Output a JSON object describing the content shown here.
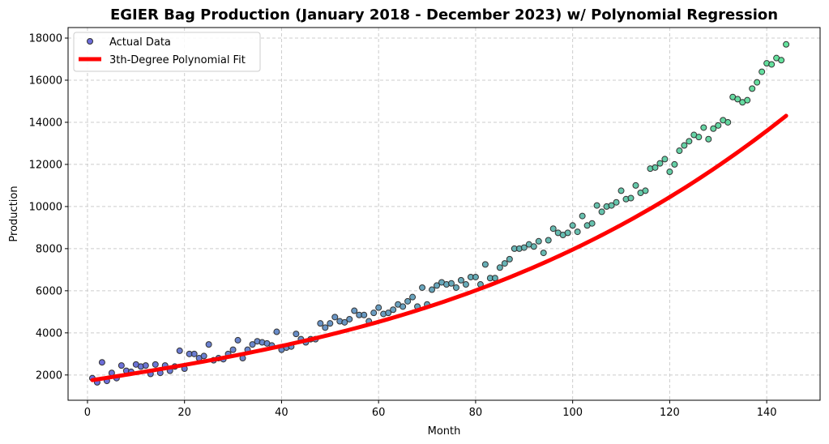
{
  "chart_data": {
    "type": "scatter",
    "title": "EGIER Bag Production (January 2018 - December 2023) w/ Polynomial Regression",
    "xlabel": "Month",
    "ylabel": "Production",
    "xlim": [
      -4,
      151
    ],
    "ylim": [
      800,
      18500
    ],
    "xticks": [
      0,
      20,
      40,
      60,
      80,
      100,
      120,
      140
    ],
    "yticks": [
      2000,
      4000,
      6000,
      8000,
      10000,
      12000,
      14000,
      16000,
      18000
    ],
    "grid": true,
    "legend": {
      "placement": "top-left",
      "entries": [
        "Actual Data",
        "3th-Degree Polynomial Fit"
      ]
    },
    "colors": {
      "fit_line": "#ff0000",
      "point_start": "#4747d1",
      "point_end": "#3ddc84",
      "point_edge": "#333333",
      "grid": "#cccccc"
    },
    "series": [
      {
        "name": "Actual Data",
        "style": "scatter",
        "x": [
          1,
          2,
          3,
          4,
          5,
          6,
          7,
          8,
          9,
          10,
          11,
          12,
          13,
          14,
          15,
          16,
          17,
          18,
          19,
          20,
          21,
          22,
          23,
          24,
          25,
          26,
          27,
          28,
          29,
          30,
          31,
          32,
          33,
          34,
          35,
          36,
          37,
          38,
          39,
          40,
          41,
          42,
          43,
          44,
          45,
          46,
          47,
          48,
          49,
          50,
          51,
          52,
          53,
          54,
          55,
          56,
          57,
          58,
          59,
          60,
          61,
          62,
          63,
          64,
          65,
          66,
          67,
          68,
          69,
          70,
          71,
          72,
          73,
          74,
          75,
          76,
          77,
          78,
          79,
          80,
          81,
          82,
          83,
          84,
          85,
          86,
          87,
          88,
          89,
          90,
          91,
          92,
          93,
          94,
          95,
          96,
          97,
          98,
          99,
          100,
          101,
          102,
          103,
          104,
          105,
          106,
          107,
          108,
          109,
          110,
          111,
          112,
          113,
          114,
          115,
          116,
          117,
          118,
          119,
          120,
          121,
          122,
          123,
          124,
          125,
          126,
          127,
          128,
          129,
          130,
          131,
          132,
          133,
          134,
          135,
          136,
          137,
          138,
          139,
          140,
          141,
          142,
          143,
          144
        ],
        "y": [
          1850,
          1650,
          2600,
          1720,
          2100,
          1850,
          2450,
          2200,
          2150,
          2500,
          2400,
          2450,
          2050,
          2500,
          2100,
          2450,
          2200,
          2400,
          3150,
          2300,
          3000,
          3000,
          2800,
          2900,
          3450,
          2700,
          2800,
          2750,
          3000,
          3200,
          3650,
          2800,
          3200,
          3450,
          3600,
          3550,
          3500,
          3400,
          4050,
          3200,
          3300,
          3350,
          3950,
          3700,
          3550,
          3700,
          3700,
          4450,
          4250,
          4450,
          4750,
          4550,
          4500,
          4650,
          5050,
          4850,
          4850,
          4550,
          4950,
          5200,
          4900,
          4950,
          5100,
          5350,
          5250,
          5500,
          5700,
          5250,
          6150,
          5350,
          6050,
          6250,
          6400,
          6300,
          6350,
          6150,
          6500,
          6300,
          6650,
          6650,
          6300,
          7250,
          6600,
          6600,
          7100,
          7300,
          7500,
          8000,
          8000,
          8050,
          8200,
          8100,
          8350,
          7800,
          8400,
          8950,
          8750,
          8650,
          8750,
          9100,
          8800,
          9550,
          9100,
          9200,
          10050,
          9750,
          10000,
          10050,
          10200,
          10750,
          10350,
          10400,
          11000,
          10650,
          10750,
          11800,
          11850,
          12050,
          12250,
          11650,
          12000,
          12650,
          12900,
          13100,
          13400,
          13300,
          13750,
          13200,
          13700,
          13850,
          14100,
          14000,
          15200,
          15100,
          14950,
          15050,
          15600,
          15900,
          16400,
          16800,
          16750,
          17050,
          16950,
          17700
        ]
      },
      {
        "name": "3th-Degree Polynomial Fit",
        "style": "line",
        "polynomial_coefficients": [
          1719.74,
          36.055,
          0.05,
          0.00213
        ]
      }
    ]
  }
}
